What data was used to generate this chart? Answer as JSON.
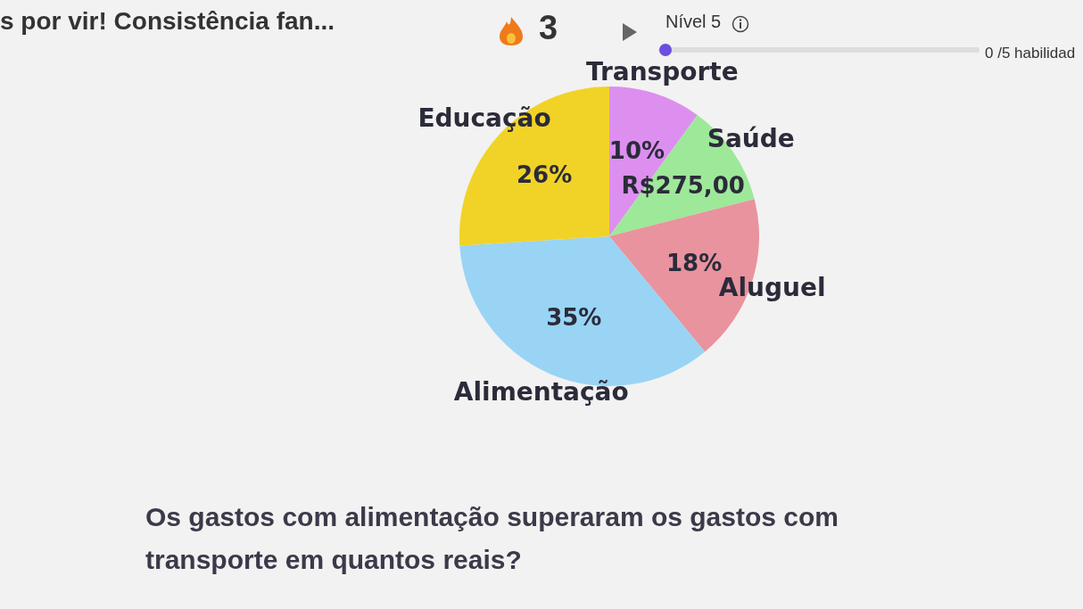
{
  "chart_data": {
    "type": "pie",
    "categories": [
      "Transporte",
      "Saúde",
      "Aluguel",
      "Alimentação",
      "Educação"
    ],
    "values": [
      10,
      11,
      18,
      35,
      26
    ],
    "value_labels": [
      "10%",
      "R$275,00",
      "18%",
      "35%",
      "26%"
    ],
    "colors": [
      "#dd8fef",
      "#9ee89a",
      "#e8939e",
      "#99d4f5",
      "#f1d327"
    ],
    "annotations": [
      "s por vir! Consistência fan...",
      "3",
      "Nível 5",
      "0 /5 habilidad",
      "Os gastos com alimentação superaram os gastos com transporte em quantos reais?"
    ]
  }
}
